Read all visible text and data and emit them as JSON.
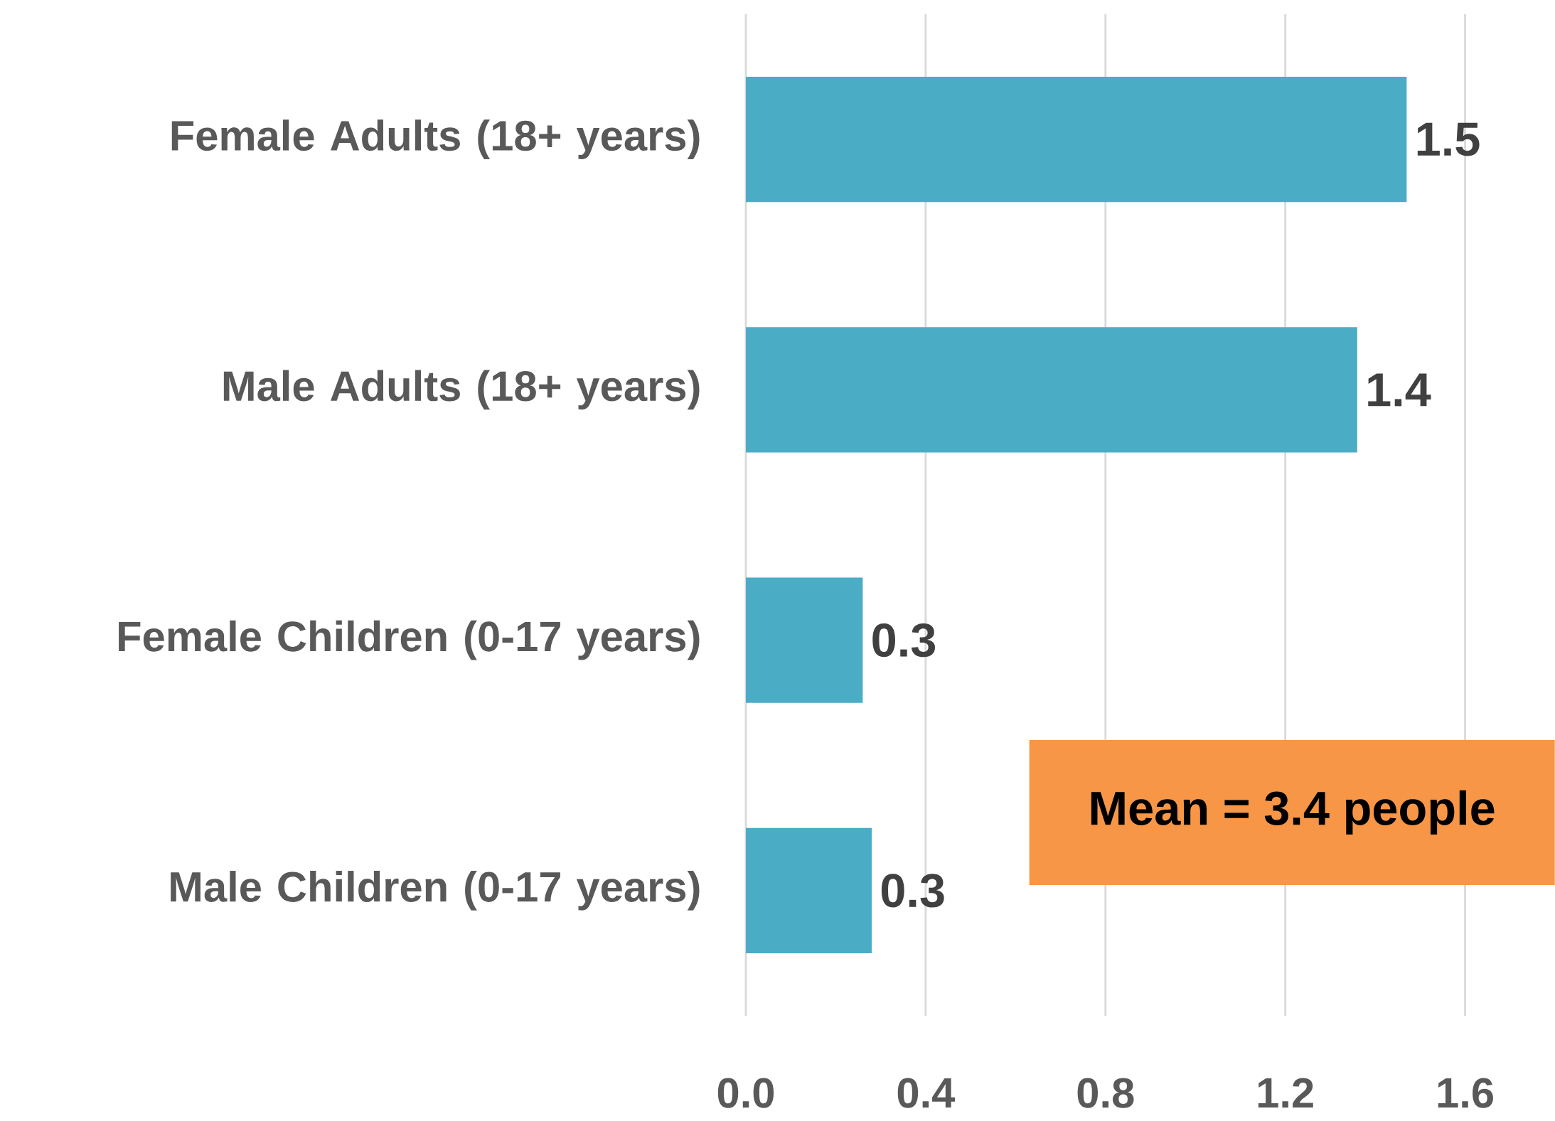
{
  "chart_data": {
    "type": "bar",
    "orientation": "horizontal",
    "categories": [
      "Female Adults (18+ years)",
      "Male Adults (18+ years)",
      "Female  Children (0-17 years)",
      "Male Children (0-17 years)"
    ],
    "values": [
      1.47,
      1.36,
      0.26,
      0.28
    ],
    "value_labels": [
      "1.5",
      "1.4",
      "0.3",
      "0.3"
    ],
    "color": "#4bacc6",
    "xlim": [
      0,
      1.8
    ],
    "xticks": [
      {
        "value": 0,
        "label": "0.0"
      },
      {
        "value": 0.4,
        "label": "0.4"
      },
      {
        "value": 0.8,
        "label": "0.8"
      },
      {
        "value": 1.2,
        "label": "1.2"
      },
      {
        "value": 1.6,
        "label": "1.6"
      }
    ],
    "grid": "x",
    "annotations": [
      "Mean = 3.4 people"
    ]
  }
}
